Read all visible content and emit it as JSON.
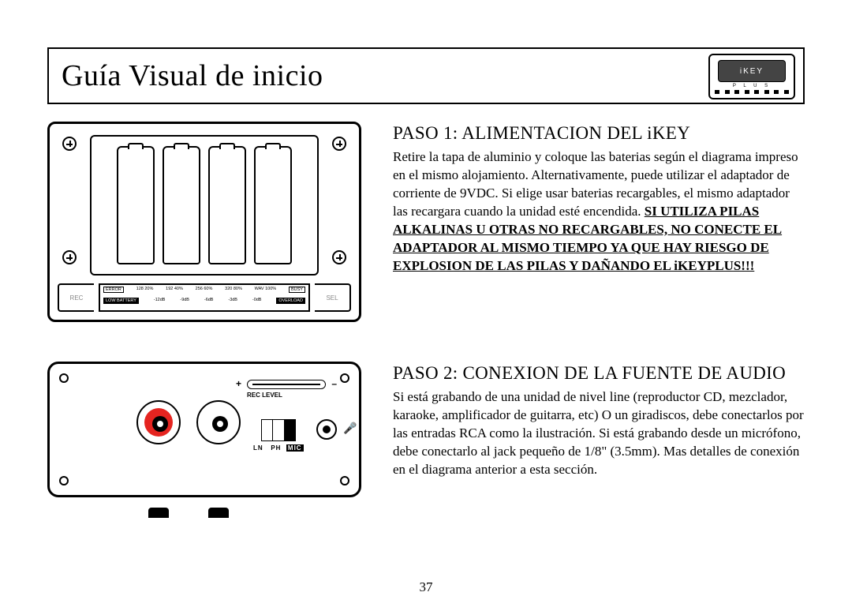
{
  "header": {
    "title": "Guía Visual de inicio",
    "logo_text": "iKEY",
    "logo_sub": "P L U S"
  },
  "step1": {
    "title": "PASO 1: ALIMENTACION DEL iKEY",
    "body": "Retire la tapa de aluminio y coloque las baterias según el diagrama impreso en el mismo alojamiento.  Alternativamente, puede utilizar el adaptador de corriente de 9VDC.  Si elige usar baterias recargables, el mismo adaptador las recargara cuando la unidad esté encendida.  ",
    "warning": "SI UTILIZA PILAS ALKALINAS U OTRAS NO RECARGABLES, NO CONECTE EL ADAPTADOR AL MISMO TIEMPO YA QUE HAY RIESGO DE EXPLOSION DE LAS PILAS Y DAÑANDO EL iKEYPLUS!!!",
    "side_left": "REC",
    "side_right": "SEL",
    "strip_top": [
      "ERROR",
      "128 20%",
      "192 40%",
      "256 60%",
      "320 80%",
      "WAV 100%",
      "BUSY"
    ],
    "strip_bot": [
      "LOW BATTERY",
      "-12dB",
      "-9dB",
      "-6dB",
      "-3dB",
      "-0dB",
      "OVERLOAD"
    ]
  },
  "step2": {
    "title": "PASO 2: CONEXION DE LA FUENTE DE AUDIO",
    "body": "Si está grabando de una unidad de nivel line (reproductor CD, mezclador, karaoke, amplificador de guitarra, etc) O un giradiscos, debe conectarlos por las entradas RCA como la ilustración. Si está grabando desde un micrófono, debe conectarlo al jack pequeño de 1/8\" (3.5mm). Mas detalles de conexión en el diagrama anterior a esta sección.",
    "rec_level_label": "REC LEVEL",
    "switch_labels": {
      "ln": "LN",
      "ph": "PH",
      "mic": "MIC"
    },
    "colors": {
      "rca_left": "#e52420",
      "rca_right": "#ffffff"
    }
  },
  "page_number": "37"
}
